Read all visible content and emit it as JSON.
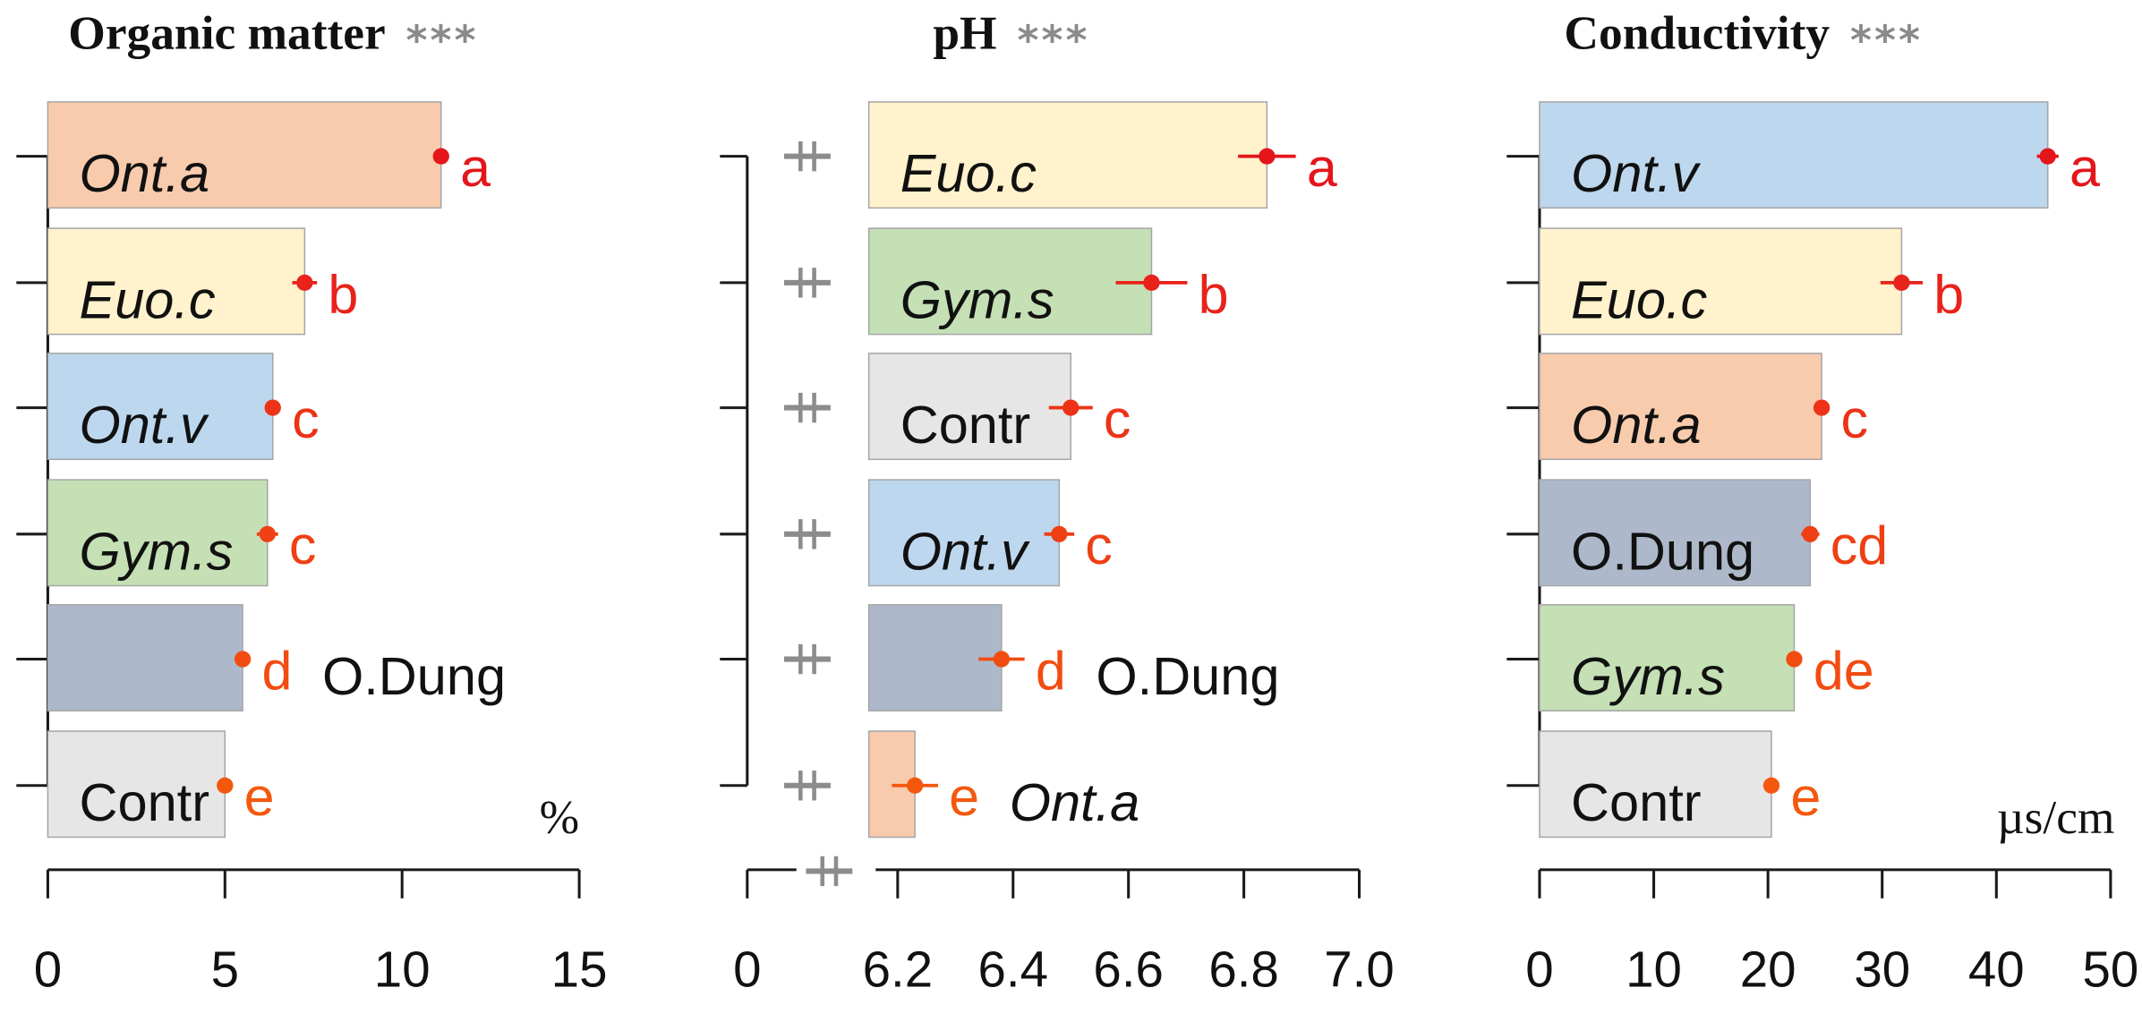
{
  "colors": {
    "background": "#ffffff",
    "axis": "#1a1a1a",
    "bar_edge": "#a6a6a6",
    "break_mark": "#8c8c8c",
    "significance": "#8a8a8a"
  },
  "chart_data": [
    {
      "type": "bar",
      "title": "Organic matter",
      "significance": "***",
      "unit": "%",
      "xlim": [
        0,
        15
      ],
      "bar_baseline": 0,
      "xticks": [
        0,
        5,
        10,
        15
      ],
      "xtick_labels": [
        "0",
        "5",
        "10",
        "15"
      ],
      "bars": [
        {
          "category": "Ont.a",
          "value": 11.1,
          "error": 0.05,
          "group": "a",
          "italic": true,
          "label_outside": false,
          "color": "#f8cbad",
          "marker_color": "#e4161b"
        },
        {
          "category": "Euo.c",
          "value": 7.25,
          "error": 0.35,
          "group": "b",
          "italic": true,
          "label_outside": false,
          "color": "#fff2cc",
          "marker_color": "#e8231b"
        },
        {
          "category": "Ont.v",
          "value": 6.35,
          "error": 0.05,
          "group": "c",
          "italic": true,
          "label_outside": false,
          "color": "#bdd7ee",
          "marker_color": "#ec3317"
        },
        {
          "category": "Gym.s",
          "value": 6.2,
          "error": 0.3,
          "group": "c",
          "italic": true,
          "label_outside": false,
          "color": "#c5e0b4",
          "marker_color": "#ef3f14"
        },
        {
          "category": "O.Dung",
          "value": 5.5,
          "error": 0.05,
          "group": "d",
          "italic": false,
          "label_outside": true,
          "color": "#adb9ca",
          "marker_color": "#f24c11"
        },
        {
          "category": "Contr",
          "value": 5.0,
          "error": 0.05,
          "group": "e",
          "italic": false,
          "label_outside": false,
          "color": "#e7e6e6",
          "marker_color": "#f4580e"
        }
      ]
    },
    {
      "type": "bar",
      "title": "pH",
      "significance": "***",
      "xlim": [
        0,
        7.0
      ],
      "axis_break": {
        "from": 0,
        "to": 6.15
      },
      "bar_baseline": 6.15,
      "xticks": [
        0,
        6.2,
        6.4,
        6.6,
        6.8,
        7.0
      ],
      "xtick_labels": [
        "0",
        "6.2",
        "6.4",
        "6.6",
        "6.8",
        "7.0"
      ],
      "bars": [
        {
          "category": "Euo.c",
          "value": 6.84,
          "error": 0.05,
          "group": "a",
          "italic": true,
          "label_outside": false,
          "color": "#fff2cc",
          "marker_color": "#e4161b"
        },
        {
          "category": "Gym.s",
          "value": 6.64,
          "error": 0.062,
          "group": "b",
          "italic": true,
          "label_outside": false,
          "color": "#c5e0b4",
          "marker_color": "#e8231b"
        },
        {
          "category": "Contr",
          "value": 6.5,
          "error": 0.038,
          "group": "c",
          "italic": false,
          "label_outside": false,
          "color": "#e7e6e6",
          "marker_color": "#ec3317"
        },
        {
          "category": "Ont.v",
          "value": 6.48,
          "error": 0.026,
          "group": "c",
          "italic": true,
          "label_outside": false,
          "color": "#bdd7ee",
          "marker_color": "#ef3f14"
        },
        {
          "category": "O.Dung",
          "value": 6.38,
          "error": 0.04,
          "group": "d",
          "italic": false,
          "label_outside": true,
          "color": "#adb9ca",
          "marker_color": "#f24c11"
        },
        {
          "category": "Ont.a",
          "value": 6.23,
          "error": 0.04,
          "group": "e",
          "italic": true,
          "label_outside": true,
          "color": "#f8cbad",
          "marker_color": "#f4580e"
        }
      ]
    },
    {
      "type": "bar",
      "title": "Conductivity",
      "significance": "***",
      "unit": "µs/cm",
      "xlim": [
        0,
        50
      ],
      "bar_baseline": 0,
      "xticks": [
        0,
        10,
        20,
        30,
        40,
        50
      ],
      "xtick_labels": [
        "0",
        "10",
        "20",
        "30",
        "40",
        "50"
      ],
      "bars": [
        {
          "category": "Ont.v",
          "value": 44.5,
          "error": 0.95,
          "group": "a",
          "italic": true,
          "label_outside": false,
          "color": "#bdd7ee",
          "marker_color": "#e4161b"
        },
        {
          "category": "Euo.c",
          "value": 31.7,
          "error": 1.85,
          "group": "b",
          "italic": true,
          "label_outside": false,
          "color": "#fff2cc",
          "marker_color": "#e8231b"
        },
        {
          "category": "Ont.a",
          "value": 24.7,
          "error": 0.3,
          "group": "c",
          "italic": true,
          "label_outside": false,
          "color": "#f8cbad",
          "marker_color": "#ec3317"
        },
        {
          "category": "O.Dung",
          "value": 23.7,
          "error": 0.8,
          "group": "cd",
          "italic": false,
          "label_outside": false,
          "color": "#adb9ca",
          "marker_color": "#ef3f14"
        },
        {
          "category": "Gym.s",
          "value": 22.3,
          "error": 0.5,
          "group": "de",
          "italic": true,
          "label_outside": false,
          "color": "#c5e0b4",
          "marker_color": "#f24c11"
        },
        {
          "category": "Contr",
          "value": 20.3,
          "error": 0.3,
          "group": "e",
          "italic": false,
          "label_outside": false,
          "color": "#e7e6e6",
          "marker_color": "#f4580e"
        }
      ]
    }
  ]
}
